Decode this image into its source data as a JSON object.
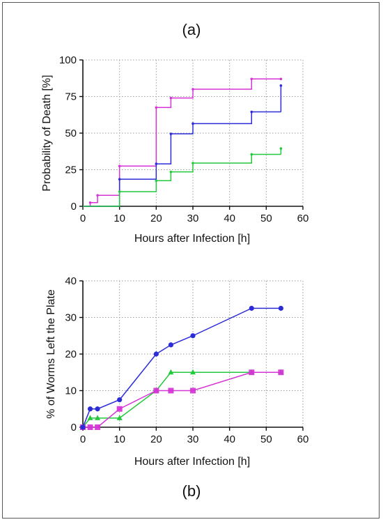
{
  "chart_data": [
    {
      "type": "line",
      "subtype": "step-survival",
      "panel_label": "(a)",
      "xlabel": "Hours after Infection [h]",
      "ylabel": "Probability of Death [%]",
      "xlim": [
        0,
        60
      ],
      "ylim": [
        0,
        100
      ],
      "xticks": [
        0,
        10,
        20,
        30,
        40,
        50,
        60
      ],
      "yticks": [
        0,
        25,
        50,
        75,
        100
      ],
      "grid": "dotted",
      "series": [
        {
          "color": "#d633d6",
          "x": [
            0,
            2,
            4,
            10,
            20,
            24,
            30,
            46,
            54
          ],
          "y": [
            0,
            2.5,
            7.5,
            27.5,
            67.5,
            74,
            80,
            87,
            87
          ]
        },
        {
          "color": "#2b2bd9",
          "x": [
            0,
            10,
            20,
            24,
            30,
            46,
            54
          ],
          "y": [
            0,
            18.5,
            29,
            49.5,
            56.5,
            64.5,
            64.5
          ],
          "end_tick": 82.5
        },
        {
          "color": "#22c93c",
          "x": [
            0,
            10,
            20,
            24,
            30,
            46,
            54
          ],
          "y": [
            0,
            10,
            17.5,
            23.5,
            29.5,
            35.5,
            35.5
          ],
          "end_tick": 39.5
        }
      ]
    },
    {
      "type": "line",
      "panel_label": "(b)",
      "xlabel": "Hours after Infection [h]",
      "ylabel": "% of Worms Left the Plate",
      "xlim": [
        0,
        60
      ],
      "ylim": [
        0,
        40
      ],
      "xticks": [
        0,
        10,
        20,
        30,
        40,
        50,
        60
      ],
      "yticks": [
        0,
        10,
        20,
        30,
        40
      ],
      "grid": "dotted",
      "series": [
        {
          "color": "#22c93c",
          "marker": "triangle",
          "x": [
            0,
            2,
            4,
            10,
            20,
            24,
            30,
            46,
            54
          ],
          "y": [
            0,
            2.5,
            2.5,
            2.5,
            10,
            15,
            15,
            15,
            15
          ]
        },
        {
          "color": "#d633d6",
          "marker": "square",
          "x": [
            0,
            2,
            4,
            10,
            20,
            24,
            30,
            46,
            54
          ],
          "y": [
            0,
            0,
            0,
            5,
            10,
            10,
            10,
            15,
            15
          ]
        },
        {
          "color": "#2b2bd9",
          "marker": "circle",
          "x": [
            0,
            2,
            4,
            10,
            20,
            24,
            30,
            46,
            54
          ],
          "y": [
            0,
            5,
            5,
            7.5,
            20,
            22.5,
            25,
            32.5,
            32.5
          ]
        }
      ]
    }
  ]
}
